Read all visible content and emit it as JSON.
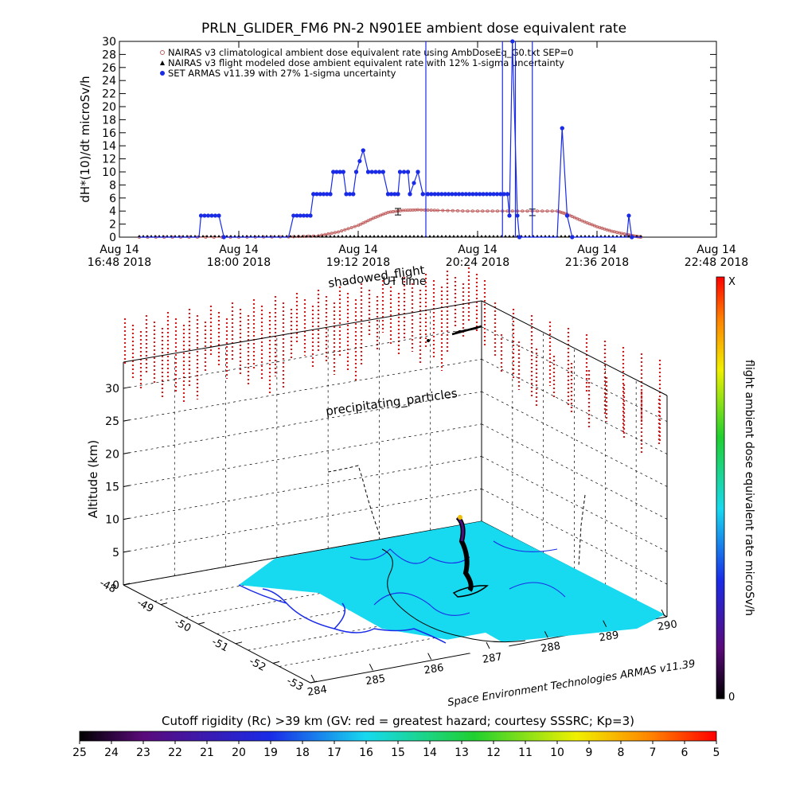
{
  "top_chart": {
    "title": "PRLN_GLIDER_FM6 PN-2 N901EE ambient dose equivalent rate",
    "ylabel": "dH*(10)/dt microSv/h",
    "xlabel": "UT time",
    "y_ticks": [
      "0",
      "2",
      "4",
      "6",
      "8",
      "10",
      "12",
      "14",
      "16",
      "18",
      "20",
      "22",
      "24",
      "26",
      "28",
      "30"
    ],
    "x_ticks": [
      {
        "line1": "Aug 14",
        "line2": "16:48 2018"
      },
      {
        "line1": "Aug 14",
        "line2": "18:00 2018"
      },
      {
        "line1": "Aug 14",
        "line2": "19:12 2018"
      },
      {
        "line1": "Aug 14",
        "line2": "20:24 2018"
      },
      {
        "line1": "Aug 14",
        "line2": "21:36 2018"
      },
      {
        "line1": "Aug 14",
        "line2": "22:48 2018"
      }
    ],
    "legend": [
      {
        "label": "NAIRAS v3 climatological ambient dose equivalent rate using AmbDoseEq_G0.txt SEP=0",
        "color": "#c06060"
      },
      {
        "label": "NAIRAS v3 flight modeled dose ambient equivalent rate with 12% 1-sigma uncertainty",
        "color": "#000000"
      },
      {
        "label": "SET ARMAS v11.39 with 27% 1-sigma uncertainty",
        "color": "#1a2be8"
      }
    ]
  },
  "chart_data": [
    {
      "type": "line",
      "title": "PRLN_GLIDER_FM6 PN-2 N901EE ambient dose equivalent rate",
      "xlabel": "UT time",
      "ylabel": "dH*(10)/dt microSv/h",
      "xlim": [
        "2018-08-14 16:48",
        "2018-08-14 22:48"
      ],
      "ylim": [
        0,
        30
      ],
      "grid": false,
      "legend_position": "top-left",
      "x_unit": "hours UT, Aug 14 2018",
      "series": [
        {
          "name": "NAIRAS v3 climatological ambient dose equivalent rate using AmbDoseEq_G0.txt SEP=0",
          "color": "#c06060",
          "x": [
            17.0,
            17.5,
            18.0,
            18.5,
            18.8,
            19.0,
            19.2,
            19.35,
            19.5,
            19.65,
            19.8,
            20.0,
            20.3,
            20.6,
            20.9,
            21.2,
            21.3,
            21.45,
            21.6,
            21.75,
            21.9,
            22.0,
            22.05
          ],
          "values": [
            0,
            0,
            0,
            0.05,
            0.2,
            0.8,
            1.8,
            2.9,
            3.8,
            4.1,
            4.2,
            4.1,
            4.0,
            4.0,
            4.0,
            4.0,
            3.5,
            2.5,
            1.6,
            0.9,
            0.4,
            0.1,
            0
          ]
        },
        {
          "name": "NAIRAS v3 flight modeled dose ambient equivalent rate with 12% 1-sigma uncertainty",
          "color": "#000000",
          "x": [
            19.6,
            20.95
          ],
          "values": [
            3.9,
            3.8
          ],
          "error": [
            0.5,
            0.5
          ]
        },
        {
          "name": "SET ARMAS v11.39 with 27% 1-sigma uncertainty",
          "color": "#1a2be8",
          "x": [
            17.0,
            17.6,
            17.62,
            17.8,
            17.85,
            18.5,
            18.55,
            18.72,
            18.75,
            18.92,
            18.95,
            19.05,
            19.08,
            19.15,
            19.18,
            19.25,
            19.3,
            19.45,
            19.5,
            19.6,
            19.62,
            19.7,
            19.72,
            19.8,
            19.85,
            19.9,
            20.7,
            20.72,
            20.75,
            20.8,
            20.82,
            21.2,
            21.25,
            21.3,
            21.35,
            21.5,
            21.7,
            21.9,
            21.92,
            21.95,
            22.05
          ],
          "values": [
            0,
            0,
            3.3,
            3.3,
            0,
            0,
            3.3,
            3.3,
            6.6,
            6.6,
            10,
            10,
            6.6,
            6.6,
            10,
            13.3,
            10,
            10,
            6.6,
            6.6,
            10,
            10,
            6.6,
            10,
            6.6,
            6.6,
            6.6,
            3.3,
            30,
            3.3,
            0,
            0,
            16.7,
            3.3,
            0,
            0,
            0,
            0,
            3.3,
            0,
            0
          ]
        }
      ]
    },
    {
      "type": "scatter",
      "title": "",
      "xlabel": "",
      "ylabel": "Altitude (km)",
      "zlim": [
        0,
        34
      ],
      "x_ticks": [
        "284",
        "285",
        "286",
        "287",
        "288",
        "289",
        "290"
      ],
      "y_ticks": [
        "-48",
        "-49",
        "-50",
        "-51",
        "-52",
        "-53"
      ],
      "z_ticks": [
        "0",
        "5",
        "10",
        "15",
        "20",
        "25",
        "30"
      ],
      "annotations": [
        "shadowed_flight",
        "precipitating_particles"
      ],
      "colorbar": {
        "label": "flight ambient dose equivalent rate microSv/h",
        "min_label": "0",
        "max_label": "X"
      },
      "rigidity_bar": {
        "label": "Cutoff rigidity (Rc) >39 km (GV: red = greatest hazard; courtesy SSSRC; Kp=3)",
        "ticks": [
          "25",
          "24",
          "23",
          "22",
          "21",
          "20",
          "19",
          "18",
          "17",
          "16",
          "15",
          "14",
          "13",
          "12",
          "11",
          "10",
          "9",
          "8",
          "7",
          "6",
          "5"
        ]
      },
      "credit": "Space Environment Technologies ARMAS v11.39"
    }
  ],
  "scene": {
    "label_shadowed": "shadowed_flight",
    "label_utt": "UT time",
    "label_precip": "precipitating_particles",
    "alt_label": "Altitude (km)",
    "credit": "Space Environment Technologies ARMAS v11.39",
    "colorbar_label": "flight ambient dose equivalent rate microSv/h",
    "colorbar_max": "X",
    "colorbar_min": "0"
  },
  "rigidity": {
    "label": "Cutoff rigidity (Rc) >39 km (GV: red = greatest hazard; courtesy SSSRC; Kp=3)"
  },
  "colors": {
    "armas_blue": "#1a2be8",
    "nairas_red": "#c06060",
    "map_cyan": "#17d9ef",
    "particle_red": "#cc2020"
  }
}
